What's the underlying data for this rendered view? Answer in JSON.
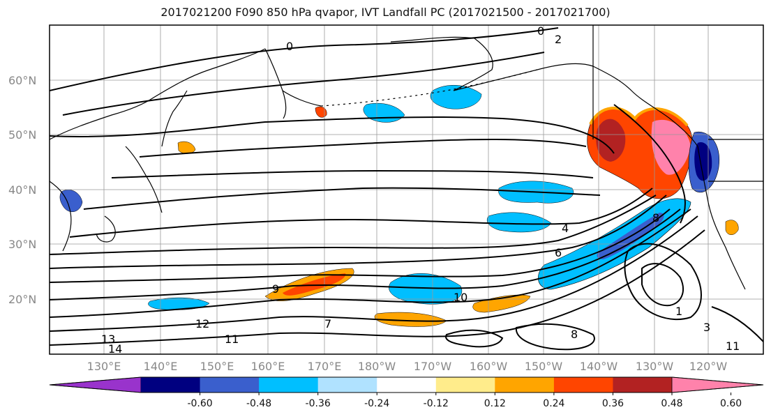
{
  "title": "2017021200 F090 850 hPa qvapor, IVT Landfall PC (2017021500 - 2017021700)",
  "map": {
    "lat_ticks": [
      "60°N",
      "50°N",
      "40°N",
      "30°N",
      "20°N"
    ],
    "lon_ticks": [
      "130°E",
      "140°E",
      "150°E",
      "160°E",
      "170°E",
      "180°W",
      "170°W",
      "160°W",
      "150°W",
      "140°W",
      "130°W",
      "120°W"
    ]
  },
  "contour_labels": [
    "0",
    "0",
    "2",
    "4",
    "6",
    "8",
    "10",
    "11",
    "12",
    "13",
    "14",
    "1",
    "3",
    "7",
    "8",
    "9",
    "11"
  ],
  "colorbar": {
    "colors": [
      "#9933cc",
      "#000080",
      "#3a5fcd",
      "#00bfff",
      "#b0e2ff",
      "#ffffff",
      "#ffec8b",
      "#ffa500",
      "#ff4500",
      "#b22222",
      "#ff82ab"
    ],
    "tick_labels": [
      "-0.60",
      "-0.48",
      "-0.36",
      "-0.24",
      "-0.12",
      "0.12",
      "0.24",
      "0.36",
      "0.48",
      "0.60"
    ]
  }
}
